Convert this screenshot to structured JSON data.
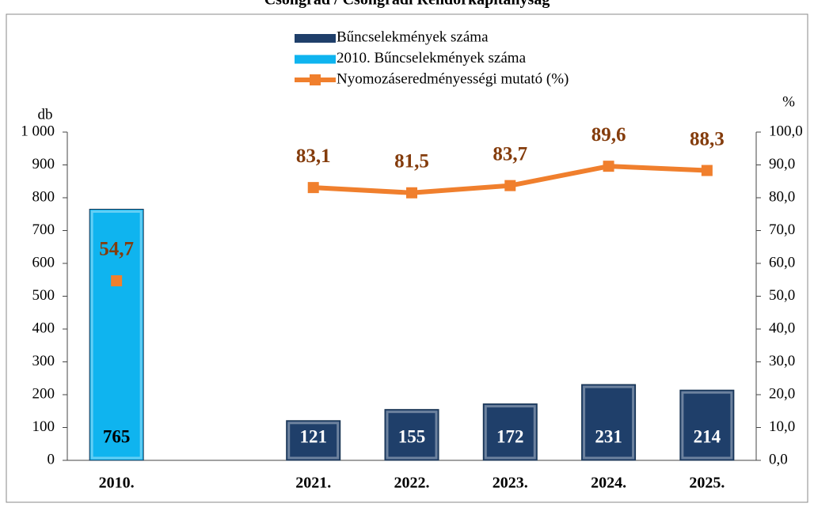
{
  "chart_data": {
    "type": "bar",
    "title": "Csongrád / Csongrádi Rendőrkapitányság",
    "y_label": "db",
    "y2_label": "%",
    "categories": [
      "2010.",
      null,
      "2021.",
      "2022.",
      "2023.",
      "2024.",
      "2025."
    ],
    "series": [
      {
        "name": "Bűncselekmények száma",
        "type": "bar",
        "color": "#1f3f6a",
        "values": [
          null,
          null,
          121,
          155,
          172,
          231,
          214
        ]
      },
      {
        "name": "2010. Bűncselekmények száma",
        "type": "bar",
        "color": "#0fb4ef",
        "values": [
          765,
          null,
          null,
          null,
          null,
          null,
          null
        ]
      },
      {
        "name": "Nyomozáseredményességi mutató (%)",
        "type": "line",
        "axis": "y2",
        "color": "#f07f2d",
        "values": [
          54.7,
          null,
          83.1,
          81.5,
          83.7,
          89.6,
          88.3
        ],
        "value_labels": [
          "54,7",
          null,
          "83,1",
          "81,5",
          "83,7",
          "89,6",
          "88,3"
        ]
      }
    ],
    "ylim": [
      0,
      1000
    ],
    "yticks": [
      0,
      100,
      200,
      300,
      400,
      500,
      600,
      700,
      800,
      900,
      {
        "value": 1000,
        "label": "1 000"
      }
    ],
    "y2lim": [
      0,
      100
    ],
    "y2ticks": [
      {
        "value": 0,
        "label": "0,0"
      },
      {
        "value": 10,
        "label": "10,0"
      },
      {
        "value": 20,
        "label": "20,0"
      },
      {
        "value": 30,
        "label": "30,0"
      },
      {
        "value": 40,
        "label": "40,0"
      },
      {
        "value": 50,
        "label": "50,0"
      },
      {
        "value": 60,
        "label": "60,0"
      },
      {
        "value": 70,
        "label": "70,0"
      },
      {
        "value": 80,
        "label": "80,0"
      },
      {
        "value": 90,
        "label": "90,0"
      },
      {
        "value": 100,
        "label": "100,0"
      }
    ]
  }
}
